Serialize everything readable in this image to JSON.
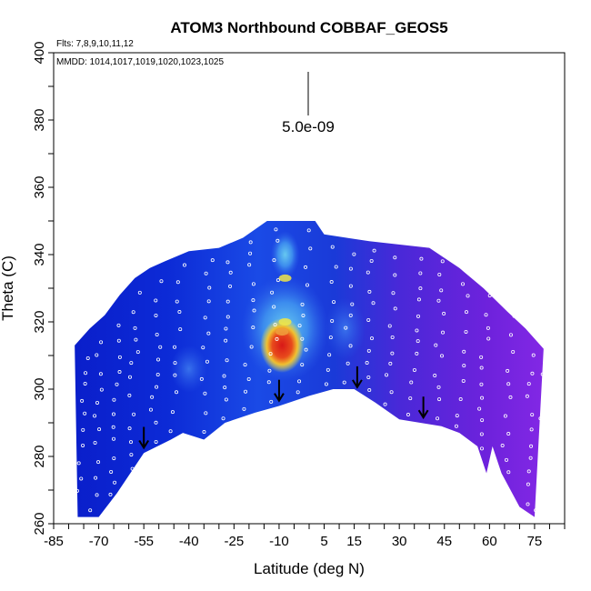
{
  "chart_data": {
    "type": "heatmap",
    "title": "ATOM3 Northbound COBBAF_GEOS5",
    "flights_label": "Flts: 7,8,9,10,11,12",
    "dates_label": "MMDD: 1014,1017,1019,1020,1023,1025",
    "xlabel": "Latitude (deg N)",
    "ylabel": "Theta (C)",
    "xlim": [
      -85,
      85
    ],
    "ylim": [
      260,
      400
    ],
    "x_ticks": [
      -85,
      -70,
      -55,
      -40,
      -25,
      -10,
      5,
      15,
      30,
      45,
      60,
      75
    ],
    "y_ticks": [
      260,
      280,
      300,
      320,
      340,
      360,
      380,
      400
    ],
    "scale_bar_label": "5.0e-09",
    "colors": {
      "deep_blue": "#0a14c8",
      "mid_blue": "#1e46e6",
      "light_blue": "#5aa0f0",
      "purple": "#7a28e0",
      "yellow": "#f0e646",
      "orange": "#f08c1e",
      "red": "#dc1e1e",
      "ground": "#ffffff"
    },
    "surface_theta": [
      {
        "lat": -77,
        "theta": 262
      },
      {
        "lat": -70,
        "theta": 262
      },
      {
        "lat": -64,
        "theta": 269
      },
      {
        "lat": -55,
        "theta": 281
      },
      {
        "lat": -46,
        "theta": 285
      },
      {
        "lat": -42,
        "theta": 287
      },
      {
        "lat": -35,
        "theta": 285
      },
      {
        "lat": -28,
        "theta": 290
      },
      {
        "lat": -18,
        "theta": 293
      },
      {
        "lat": -10,
        "theta": 295
      },
      {
        "lat": 0,
        "theta": 298
      },
      {
        "lat": 8,
        "theta": 300
      },
      {
        "lat": 15,
        "theta": 300
      },
      {
        "lat": 22,
        "theta": 296
      },
      {
        "lat": 30,
        "theta": 291
      },
      {
        "lat": 37,
        "theta": 290
      },
      {
        "lat": 44,
        "theta": 289
      },
      {
        "lat": 50,
        "theta": 287
      },
      {
        "lat": 56,
        "theta": 283
      },
      {
        "lat": 59,
        "theta": 275
      },
      {
        "lat": 61,
        "theta": 283
      },
      {
        "lat": 64,
        "theta": 275
      },
      {
        "lat": 70,
        "theta": 265
      },
      {
        "lat": 75,
        "theta": 262
      }
    ],
    "top_theta": [
      {
        "lat": -78,
        "theta": 313
      },
      {
        "lat": -73,
        "theta": 318
      },
      {
        "lat": -68,
        "theta": 322
      },
      {
        "lat": -63,
        "theta": 328
      },
      {
        "lat": -58,
        "theta": 333
      },
      {
        "lat": -53,
        "theta": 336
      },
      {
        "lat": -48,
        "theta": 338
      },
      {
        "lat": -40,
        "theta": 341
      },
      {
        "lat": -30,
        "theta": 342
      },
      {
        "lat": -22,
        "theta": 345
      },
      {
        "lat": -14,
        "theta": 350
      },
      {
        "lat": 2,
        "theta": 350
      },
      {
        "lat": 5,
        "theta": 346
      },
      {
        "lat": 20,
        "theta": 344
      },
      {
        "lat": 40,
        "theta": 342
      },
      {
        "lat": 50,
        "theta": 336
      },
      {
        "lat": 58,
        "theta": 330
      },
      {
        "lat": 66,
        "theta": 323
      },
      {
        "lat": 72,
        "theta": 318
      },
      {
        "lat": 78,
        "theta": 312
      }
    ],
    "hotspots": [
      {
        "lat": -9,
        "theta": 313,
        "level": "red"
      },
      {
        "lat": -9,
        "theta": 317,
        "level": "orange"
      },
      {
        "lat": -8,
        "theta": 320,
        "level": "yellow"
      },
      {
        "lat": -8,
        "theta": 333,
        "level": "yellow"
      }
    ],
    "arrows": [
      {
        "lat": -55,
        "theta": 285
      },
      {
        "lat": -10,
        "theta": 299
      },
      {
        "lat": 16,
        "theta": 303
      },
      {
        "lat": 38,
        "theta": 294
      }
    ]
  }
}
